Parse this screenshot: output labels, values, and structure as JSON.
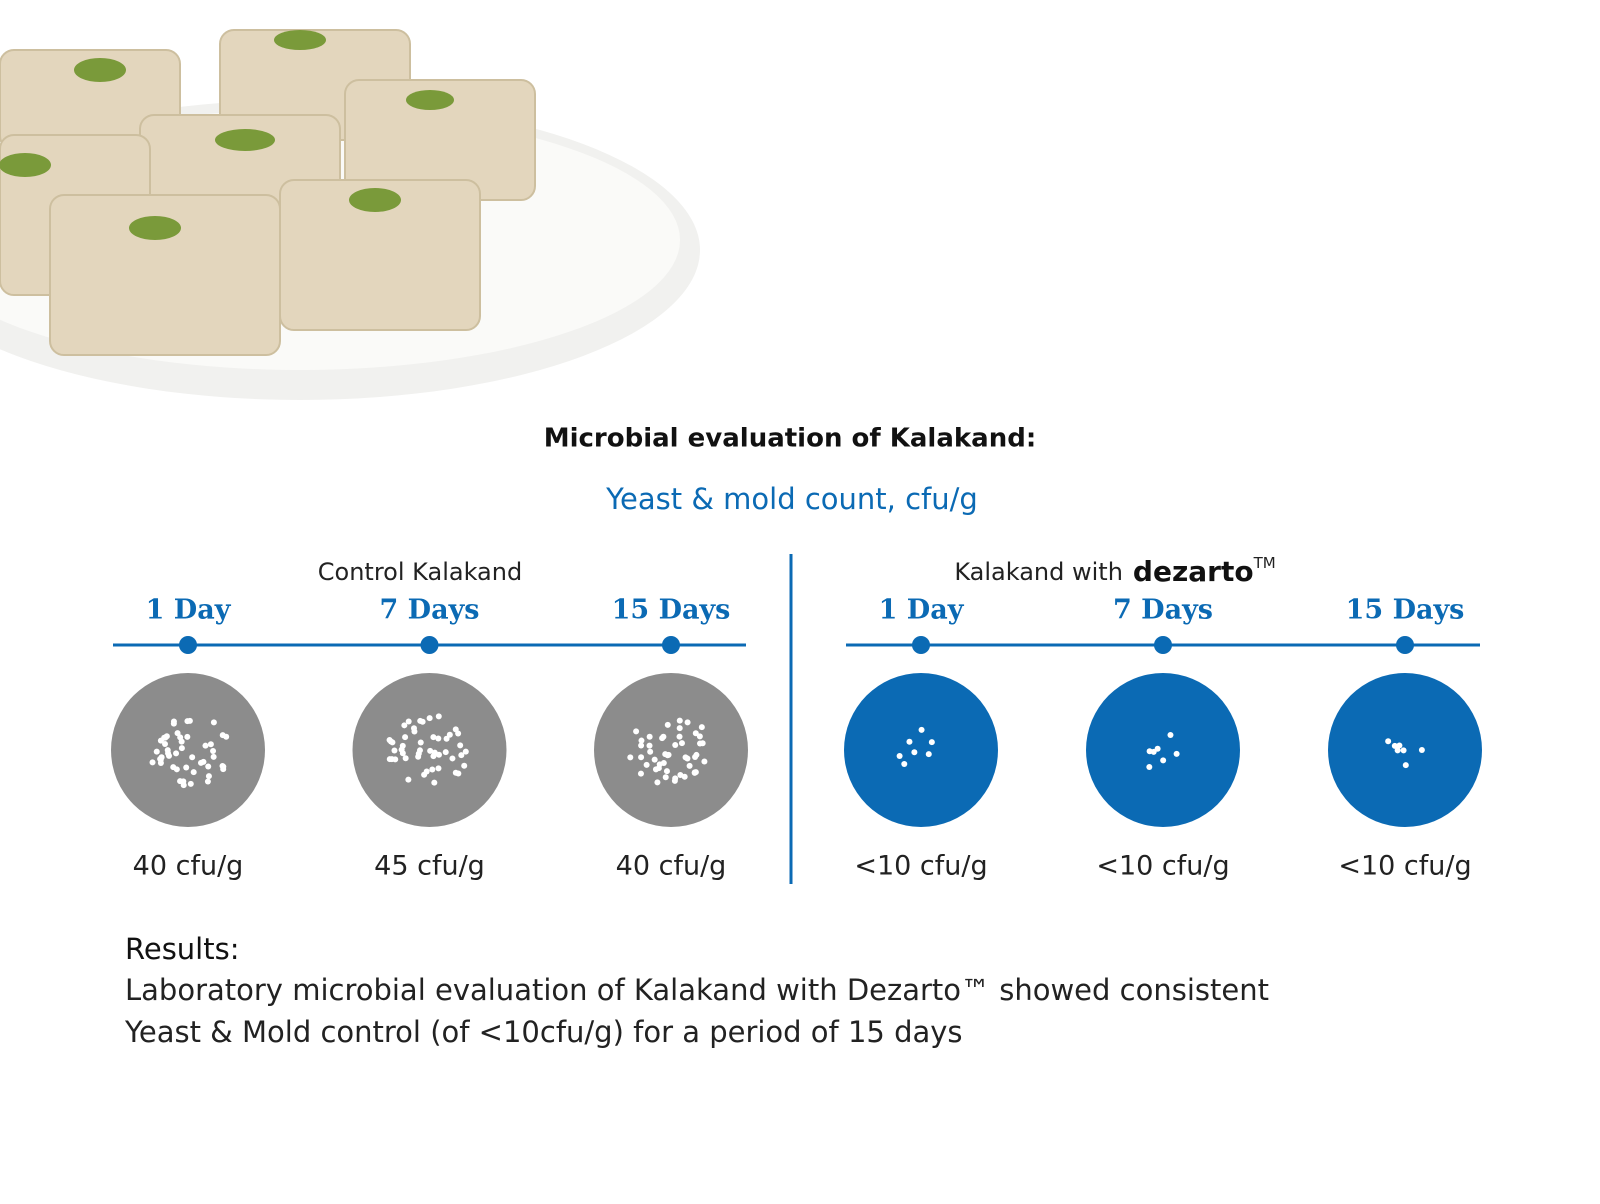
{
  "title": "Microbial evaluation of Kalakand:",
  "subtitle": "Yeast & mold count, cfu/g",
  "groups": [
    {
      "label": "Control Kalakand",
      "color": "#8c8c8c",
      "timepoints": [
        {
          "day": "1 Day",
          "result": "40 cfu/g"
        },
        {
          "day": "7 Days",
          "result": "45 cfu/g"
        },
        {
          "day": "15 Days",
          "result": "40 cfu/g"
        }
      ]
    },
    {
      "label": "Kalakand with",
      "brand": "dezarto",
      "mark": "TM",
      "color": "#0b6ab4",
      "timepoints": [
        {
          "day": "1 Day",
          "result": "<10 cfu/g"
        },
        {
          "day": "7 Days",
          "result": "<10 cfu/g"
        },
        {
          "day": "15 Days",
          "result": "<10 cfu/g"
        }
      ]
    }
  ],
  "results": {
    "heading": "Results:",
    "lines": [
      "Laboratory microbial evaluation of Kalakand with Dezarto™ showed consistent",
      "Yeast & Mold control (of <10cfu/g) for a period of 15 days"
    ]
  }
}
